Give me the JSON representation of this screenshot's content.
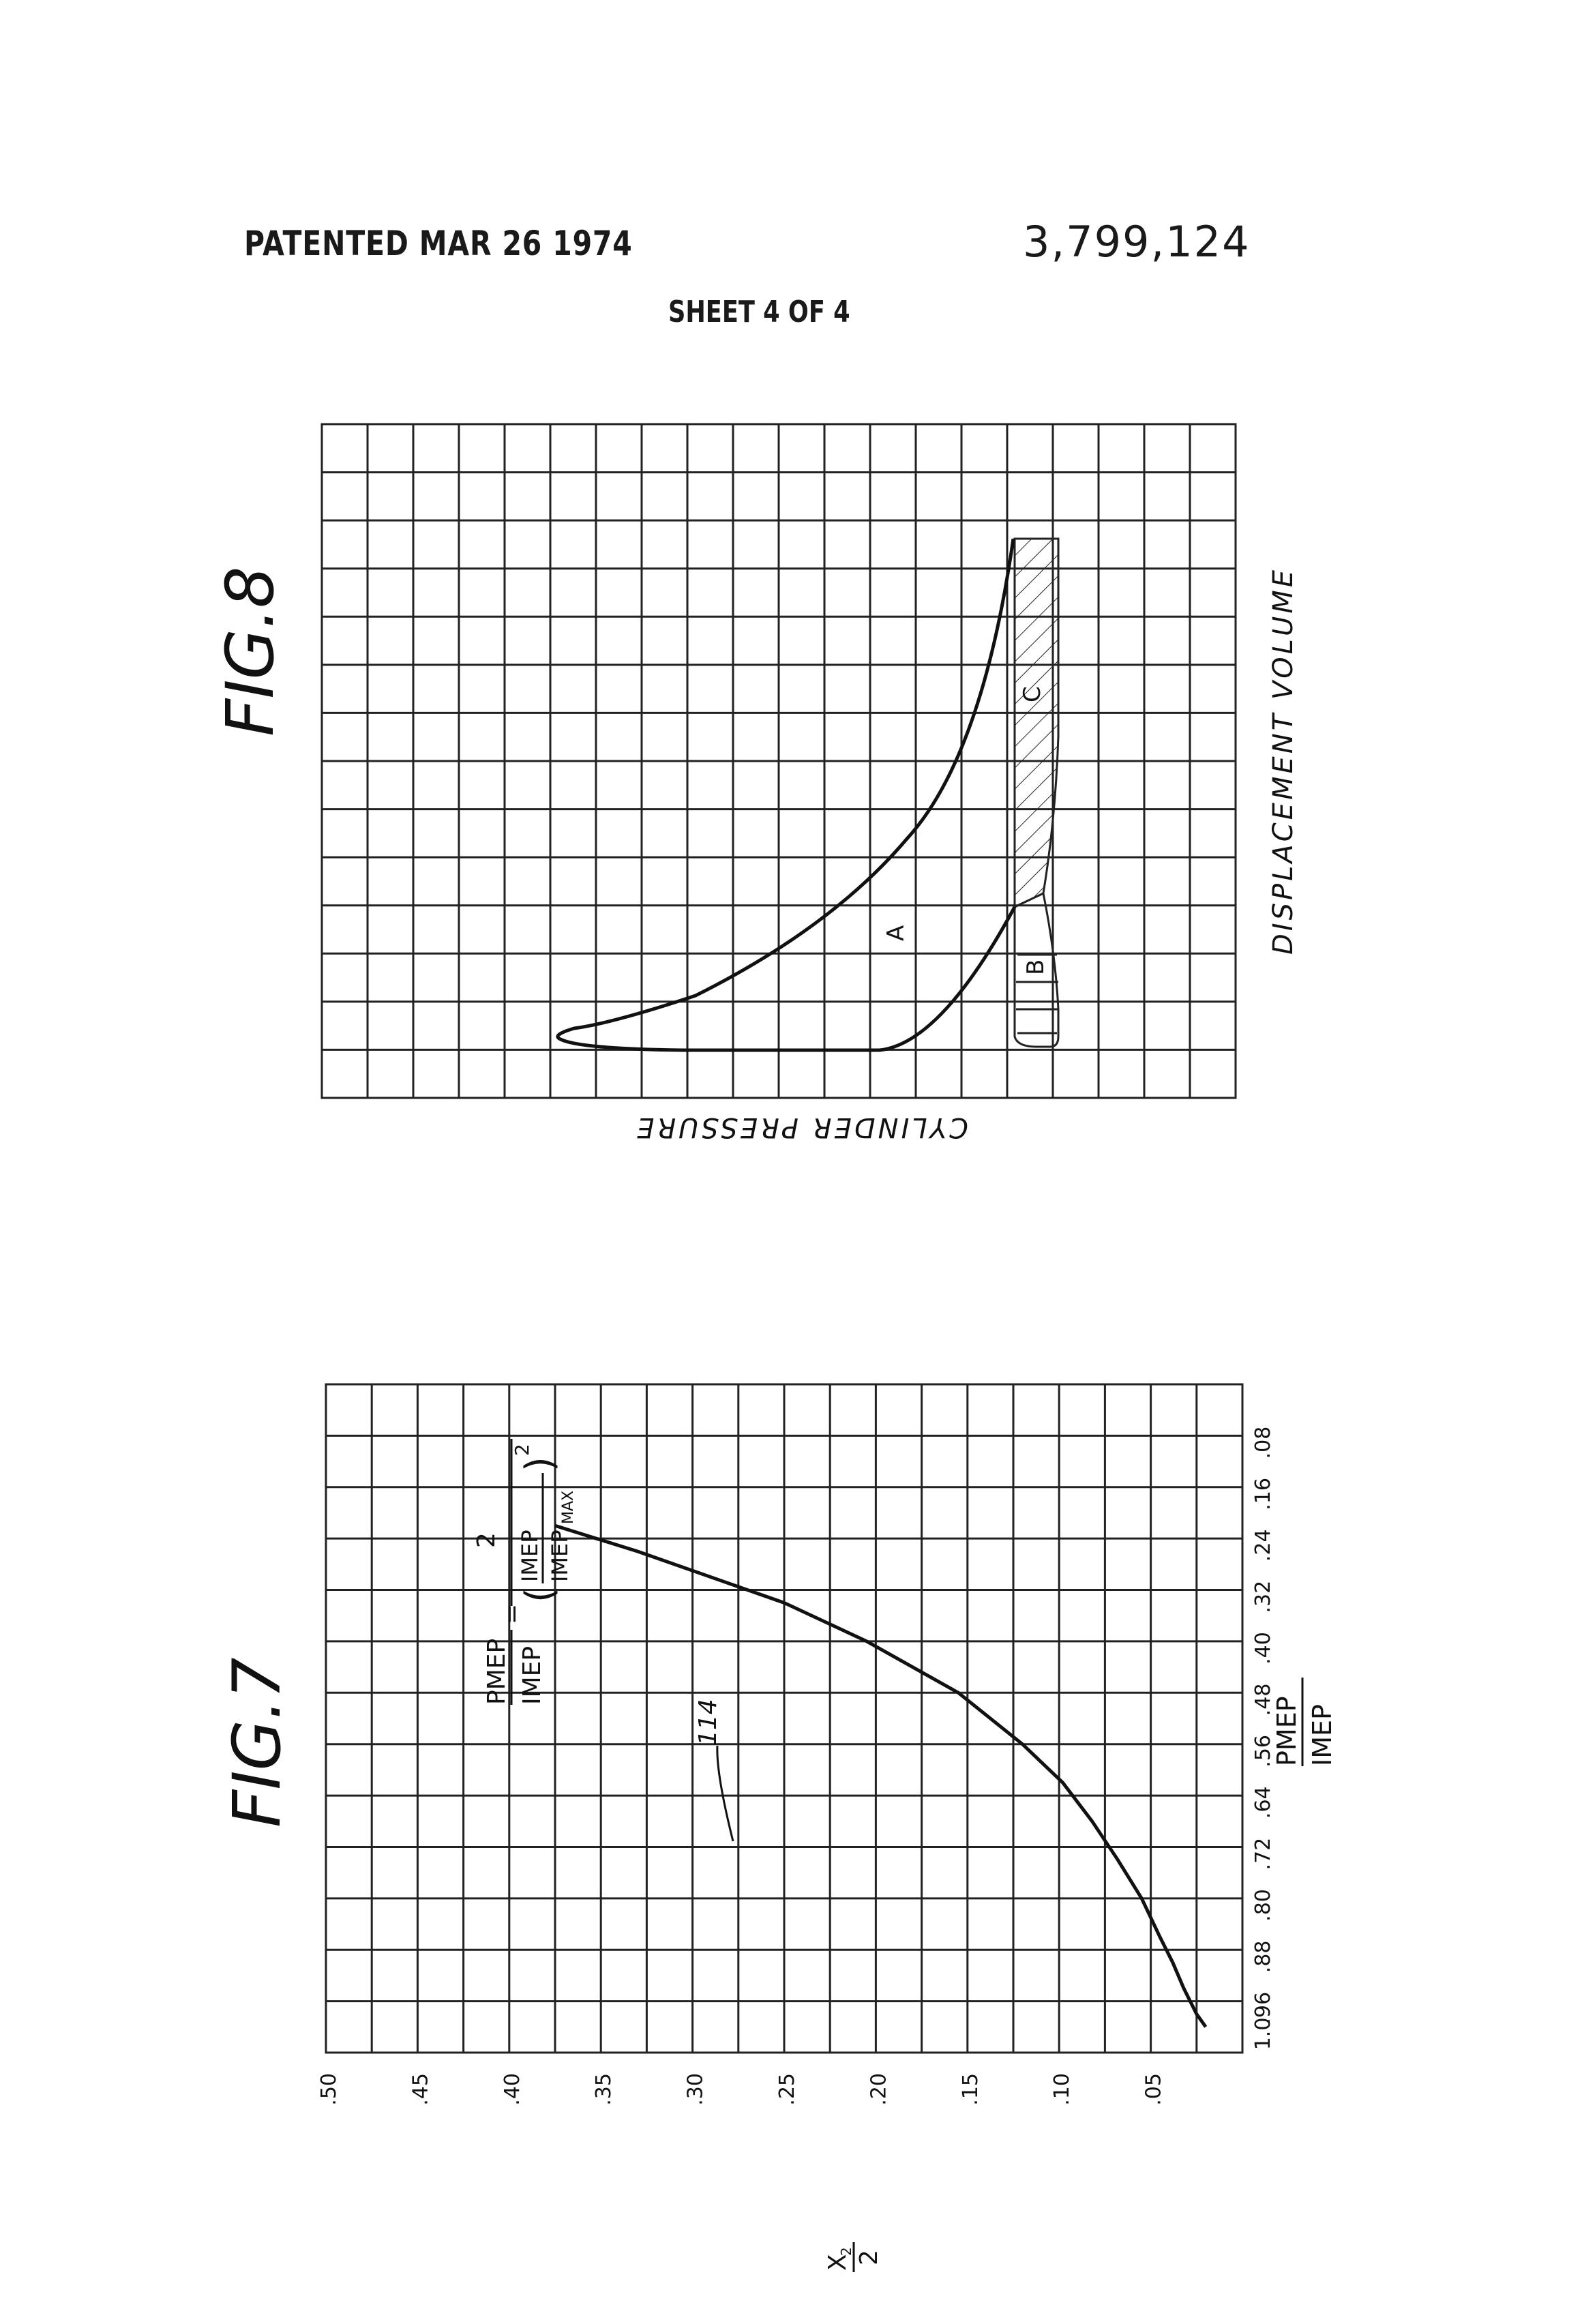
{
  "header": {
    "patented": "PATENTED MAR 26 1974",
    "patent_number": "3,799,124",
    "sheet": "SHEET 4 OF 4"
  },
  "fig8": {
    "title": "FIG.8",
    "xlabel": "DISPLACEMENT VOLUME",
    "ylabel": "CYLINDER PRESSURE",
    "region_labels": [
      "A",
      "B",
      "C"
    ]
  },
  "fig7": {
    "title": "FIG.7",
    "curve_label": "114",
    "formula": {
      "lhs_num": "PMEP",
      "lhs_den": "IMEP",
      "rhs_num": "2",
      "inner_num": "IMEP",
      "inner_den": "IMEP",
      "inner_sub": "MAX",
      "exponent": "2"
    },
    "xlabel_num": "PMEP",
    "xlabel_den": "IMEP",
    "ylabel_num": "X",
    "ylabel_sub": "2",
    "ylabel_den": "2"
  },
  "chart_data": {
    "type": "line",
    "title": "FIG.7",
    "x_ticks": [
      ".08",
      ".16",
      ".24",
      ".32",
      ".40",
      ".48",
      ".56",
      ".64",
      ".72",
      ".80",
      ".88",
      ".96",
      "1.0"
    ],
    "y_ticks": [
      ".50",
      ".45",
      ".40",
      ".35",
      ".30",
      ".25",
      ".20",
      ".15",
      ".10",
      ".05"
    ],
    "xlim": [
      0,
      1.04
    ],
    "ylim": [
      0,
      0.5
    ],
    "series": [
      {
        "name": "114",
        "x": [
          0.22,
          0.26,
          0.3,
          0.34,
          0.4,
          0.48,
          0.56,
          0.62,
          0.68,
          0.74,
          0.8,
          0.86,
          0.9,
          0.94,
          0.98,
          1.0
        ],
        "y": [
          0.375,
          0.33,
          0.29,
          0.25,
          0.205,
          0.155,
          0.12,
          0.098,
          0.082,
          0.068,
          0.055,
          0.045,
          0.038,
          0.032,
          0.025,
          0.02
        ]
      }
    ]
  }
}
